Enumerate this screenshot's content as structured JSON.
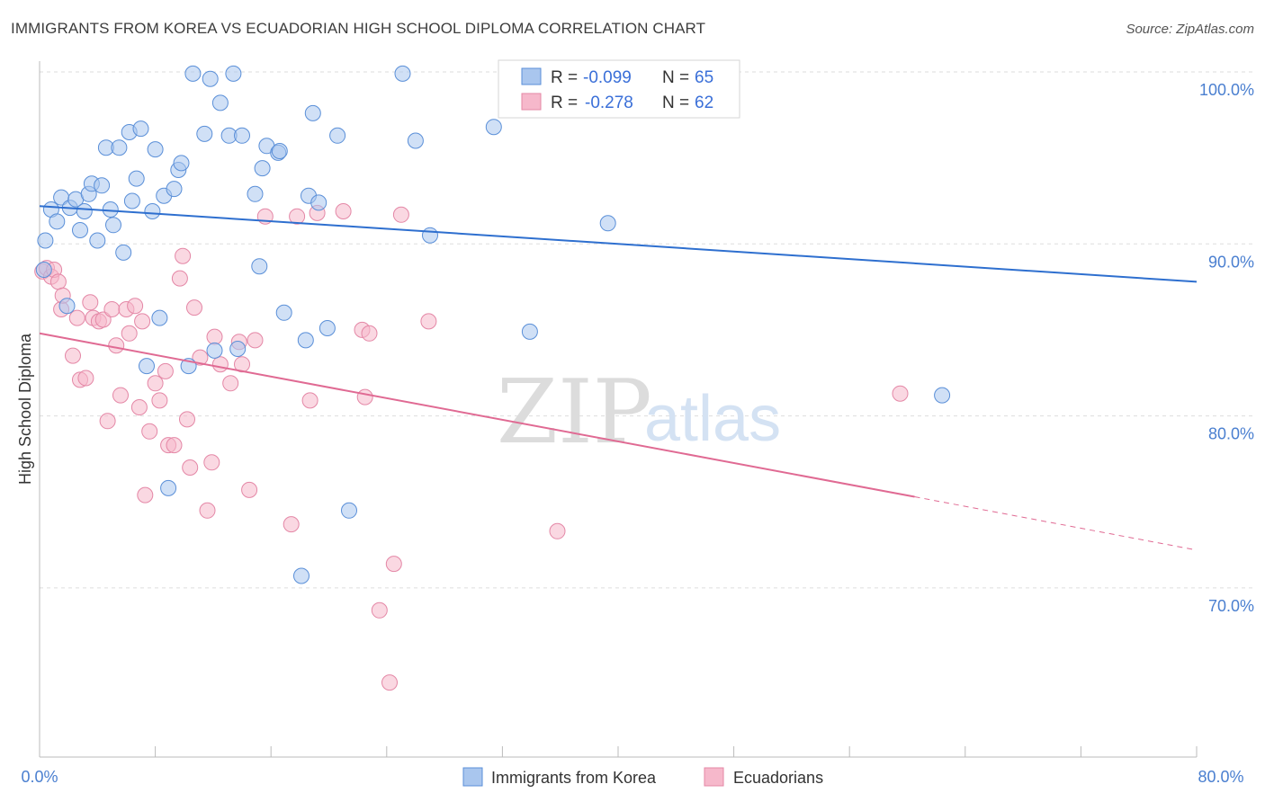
{
  "header": {
    "title": "IMMIGRANTS FROM KOREA VS ECUADORIAN HIGH SCHOOL DIPLOMA CORRELATION CHART",
    "source": "Source: ZipAtlas.com"
  },
  "watermark": {
    "zip": "ZIP",
    "atlas": "atlas"
  },
  "legend_box": {
    "rows": [
      {
        "r_label": "R =",
        "r_value": "-0.099",
        "n_label": "N =",
        "n_value": "65"
      },
      {
        "r_label": "R =",
        "r_value": "-0.278",
        "n_label": "N =",
        "n_value": "62"
      }
    ]
  },
  "bottom_legend": [
    "Immigrants from Korea",
    "Ecuadorians"
  ],
  "colors": {
    "blue_fill": "#a9c6ee",
    "blue_stroke": "#5a8fd8",
    "blue_line": "#2e6fcf",
    "pink_fill": "#f6b8cb",
    "pink_stroke": "#e487a6",
    "pink_line": "#e06a93",
    "tick": "#4a7fd0",
    "grid": "#dddddd"
  },
  "chart_data": {
    "type": "scatter",
    "title": "IMMIGRANTS FROM KOREA VS ECUADORIAN HIGH SCHOOL DIPLOMA CORRELATION CHART",
    "xlabel": "",
    "ylabel": "High School Diploma",
    "xlim": [
      0,
      80
    ],
    "ylim": [
      61,
      102
    ],
    "x_tick_labels": [
      "0.0%",
      "80.0%"
    ],
    "y_ticks": [
      70,
      80,
      90,
      100
    ],
    "y_tick_labels": [
      "70.0%",
      "80.0%",
      "90.0%",
      "100.0%"
    ],
    "grid": true,
    "legend_position": "top-center",
    "series": [
      {
        "name": "Immigrants from Korea",
        "r": -0.099,
        "n": 65,
        "trend": {
          "x": [
            0,
            80
          ],
          "y": [
            92.2,
            87.8
          ]
        },
        "points": [
          [
            0.3,
            88.5
          ],
          [
            0.4,
            90.2
          ],
          [
            0.8,
            92.0
          ],
          [
            1.2,
            91.3
          ],
          [
            1.5,
            92.7
          ],
          [
            1.9,
            86.4
          ],
          [
            2.1,
            92.1
          ],
          [
            2.5,
            92.6
          ],
          [
            2.8,
            90.8
          ],
          [
            3.1,
            91.9
          ],
          [
            3.4,
            92.9
          ],
          [
            3.6,
            93.5
          ],
          [
            4.0,
            90.2
          ],
          [
            4.3,
            93.4
          ],
          [
            4.6,
            95.6
          ],
          [
            4.9,
            92.0
          ],
          [
            5.1,
            91.1
          ],
          [
            5.5,
            95.6
          ],
          [
            5.8,
            89.5
          ],
          [
            6.2,
            96.5
          ],
          [
            6.4,
            92.5
          ],
          [
            6.7,
            93.8
          ],
          [
            7.0,
            96.7
          ],
          [
            7.4,
            82.9
          ],
          [
            7.8,
            91.9
          ],
          [
            8.0,
            95.5
          ],
          [
            8.3,
            85.7
          ],
          [
            8.6,
            92.8
          ],
          [
            8.9,
            75.8
          ],
          [
            9.3,
            93.2
          ],
          [
            9.6,
            94.3
          ],
          [
            9.8,
            94.7
          ],
          [
            10.3,
            82.9
          ],
          [
            10.6,
            99.9
          ],
          [
            11.4,
            96.4
          ],
          [
            11.8,
            99.6
          ],
          [
            12.1,
            83.8
          ],
          [
            12.5,
            98.2
          ],
          [
            13.1,
            96.3
          ],
          [
            13.4,
            99.9
          ],
          [
            13.7,
            83.9
          ],
          [
            14.0,
            96.3
          ],
          [
            14.9,
            92.9
          ],
          [
            15.2,
            88.7
          ],
          [
            15.4,
            94.4
          ],
          [
            15.7,
            95.7
          ],
          [
            16.5,
            95.3
          ],
          [
            16.6,
            95.4
          ],
          [
            16.9,
            86.0
          ],
          [
            18.1,
            70.7
          ],
          [
            18.4,
            84.4
          ],
          [
            18.6,
            92.8
          ],
          [
            18.9,
            97.6
          ],
          [
            19.3,
            92.4
          ],
          [
            19.9,
            85.1
          ],
          [
            20.6,
            96.3
          ],
          [
            21.4,
            74.5
          ],
          [
            25.1,
            99.9
          ],
          [
            26.0,
            96.0
          ],
          [
            27.0,
            90.5
          ],
          [
            31.4,
            96.8
          ],
          [
            33.9,
            84.9
          ],
          [
            39.3,
            91.2
          ],
          [
            41.0,
            100.0
          ],
          [
            62.4,
            81.2
          ]
        ]
      },
      {
        "name": "Ecuadorians",
        "r": -0.278,
        "n": 62,
        "trend": {
          "x": [
            0,
            60.5
          ],
          "y": [
            84.8,
            75.3
          ]
        },
        "trend_dashed": {
          "x": [
            60.5,
            80
          ],
          "y": [
            75.3,
            72.2
          ]
        },
        "points": [
          [
            0.2,
            88.4
          ],
          [
            0.5,
            88.6
          ],
          [
            0.8,
            88.1
          ],
          [
            1.0,
            88.5
          ],
          [
            1.3,
            87.8
          ],
          [
            1.5,
            86.2
          ],
          [
            1.6,
            87.0
          ],
          [
            2.3,
            83.5
          ],
          [
            2.6,
            85.7
          ],
          [
            2.8,
            82.1
          ],
          [
            3.2,
            82.2
          ],
          [
            3.5,
            86.6
          ],
          [
            3.7,
            85.7
          ],
          [
            4.1,
            85.5
          ],
          [
            4.4,
            85.6
          ],
          [
            4.7,
            79.7
          ],
          [
            5.0,
            86.2
          ],
          [
            5.3,
            84.1
          ],
          [
            5.6,
            81.2
          ],
          [
            6.0,
            86.2
          ],
          [
            6.2,
            84.8
          ],
          [
            6.6,
            86.4
          ],
          [
            6.9,
            80.5
          ],
          [
            7.1,
            85.5
          ],
          [
            7.3,
            75.4
          ],
          [
            7.6,
            79.1
          ],
          [
            8.0,
            81.9
          ],
          [
            8.3,
            80.9
          ],
          [
            8.7,
            82.6
          ],
          [
            8.9,
            78.3
          ],
          [
            9.3,
            78.3
          ],
          [
            9.7,
            88.0
          ],
          [
            9.9,
            89.3
          ],
          [
            10.2,
            79.8
          ],
          [
            10.4,
            77.0
          ],
          [
            10.7,
            86.3
          ],
          [
            11.1,
            83.4
          ],
          [
            11.6,
            74.5
          ],
          [
            11.9,
            77.3
          ],
          [
            12.1,
            84.6
          ],
          [
            12.5,
            83.0
          ],
          [
            13.2,
            81.9
          ],
          [
            13.8,
            84.3
          ],
          [
            14.0,
            83.0
          ],
          [
            14.5,
            75.7
          ],
          [
            14.9,
            84.4
          ],
          [
            15.6,
            91.6
          ],
          [
            17.4,
            73.7
          ],
          [
            17.8,
            91.6
          ],
          [
            18.7,
            80.9
          ],
          [
            19.2,
            91.8
          ],
          [
            21.0,
            91.9
          ],
          [
            22.3,
            85.0
          ],
          [
            22.5,
            81.1
          ],
          [
            22.8,
            84.8
          ],
          [
            23.5,
            68.7
          ],
          [
            24.2,
            64.5
          ],
          [
            24.5,
            71.4
          ],
          [
            25.0,
            91.7
          ],
          [
            26.9,
            85.5
          ],
          [
            35.8,
            73.3
          ],
          [
            59.5,
            81.3
          ]
        ]
      }
    ]
  }
}
